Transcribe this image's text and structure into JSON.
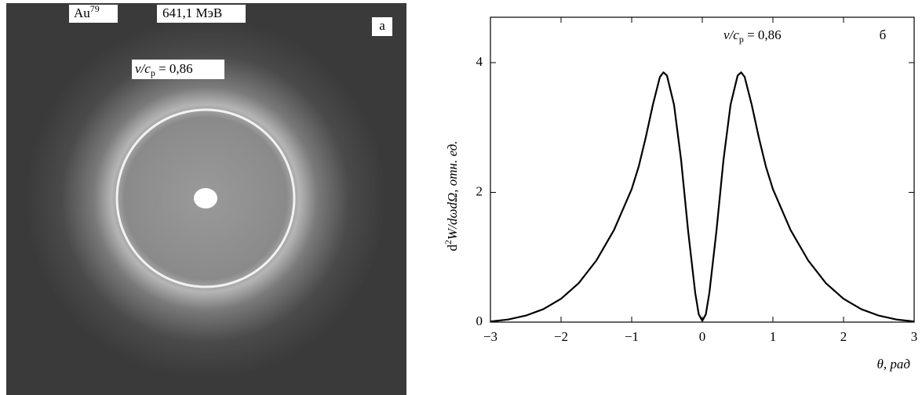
{
  "photo": {
    "panel": "а",
    "element": "Au",
    "charge": "79",
    "energy": "641,1 МэВ",
    "velocity": {
      "ratio": "v/c",
      "sub": "p",
      "value": " = 0,86"
    }
  },
  "chart_data": {
    "type": "line",
    "panel": "б",
    "annotation": {
      "ratio": "v/c",
      "sub": "p",
      "value": " = 0,86"
    },
    "x_label": "θ, рад",
    "y_label": {
      "d": "d",
      "power": "2",
      "rest": "W/dωdΩ, отн. ед."
    },
    "x": [
      -3,
      -2.75,
      -2.5,
      -2.25,
      -2,
      -1.75,
      -1.5,
      -1.25,
      -1,
      -0.9,
      -0.8,
      -0.7,
      -0.6,
      -0.55,
      -0.5,
      -0.4,
      -0.3,
      -0.2,
      -0.1,
      -0.05,
      0,
      0.05,
      0.1,
      0.2,
      0.3,
      0.4,
      0.5,
      0.55,
      0.6,
      0.7,
      0.8,
      0.9,
      1,
      1.25,
      1.5,
      1.75,
      2,
      2.25,
      2.5,
      2.75,
      3
    ],
    "series": [
      {
        "color": "#000000",
        "values": [
          0.01,
          0.04,
          0.1,
          0.2,
          0.36,
          0.6,
          0.95,
          1.42,
          2.05,
          2.4,
          2.85,
          3.35,
          3.78,
          3.85,
          3.8,
          3.35,
          2.5,
          1.4,
          0.45,
          0.12,
          0.02,
          0.12,
          0.45,
          1.4,
          2.5,
          3.35,
          3.8,
          3.85,
          3.78,
          3.35,
          2.85,
          2.4,
          2.05,
          1.42,
          0.95,
          0.6,
          0.36,
          0.2,
          0.1,
          0.04,
          0.01
        ]
      }
    ],
    "xlim": [
      -3,
      3
    ],
    "ylim": [
      0,
      4.7
    ],
    "xticks": [
      {
        "value": -3,
        "label": "−3"
      },
      {
        "value": -2,
        "label": "−2"
      },
      {
        "value": -1,
        "label": "−1"
      },
      0,
      1,
      2,
      3
    ],
    "yticks": [
      0,
      2,
      4
    ]
  }
}
